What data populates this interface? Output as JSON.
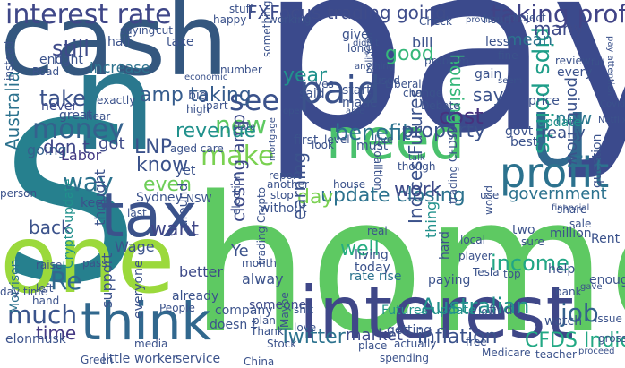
{
  "words": [
    {
      "text": "pay",
      "color": "#3b4a8c"
    },
    {
      "text": "home",
      "color": "#5ec962"
    },
    {
      "text": "cash",
      "color": "#34577f"
    },
    {
      "text": "n",
      "color": "#2a788e"
    },
    {
      "text": "S",
      "color": "#26808e"
    },
    {
      "text": "one",
      "color": "#9bd93c"
    },
    {
      "text": "interest",
      "color": "#3f4788"
    },
    {
      "text": "think",
      "color": "#31688e"
    },
    {
      "text": "tax",
      "color": "#3b528b"
    },
    {
      "text": "need",
      "color": "#4ac16d"
    },
    {
      "text": "u",
      "color": "#31688e"
    },
    {
      "text": "profit",
      "color": "#2c728e"
    },
    {
      "text": "paid",
      "color": "#3b528b"
    },
    {
      "text": "interest rate",
      "color": "#3f4788"
    },
    {
      "text": "taking profit",
      "color": "#414487"
    },
    {
      "text": "FXFocus trading going",
      "color": "#3e4c8a"
    },
    {
      "text": "money",
      "color": "#34618d"
    },
    {
      "text": "make",
      "color": "#7ad151"
    },
    {
      "text": "see",
      "color": "#3b528b"
    },
    {
      "text": "new",
      "color": "#5ec962"
    },
    {
      "text": "much",
      "color": "#3a548c"
    },
    {
      "text": "income",
      "color": "#21a685"
    },
    {
      "text": "Indices Futures",
      "color": "#3b528b"
    },
    {
      "text": "Australian",
      "color": "#21918c"
    },
    {
      "text": "update closing",
      "color": "#2c728e"
    },
    {
      "text": "closing amp",
      "color": "#3e4a89"
    },
    {
      "text": "year",
      "color": "#21918c"
    },
    {
      "text": "amp taking",
      "color": "#365c8d"
    },
    {
      "text": "good",
      "color": "#35b779"
    },
    {
      "text": "take",
      "color": "#3b528b"
    },
    {
      "text": "know",
      "color": "#3b528b"
    },
    {
      "text": "way",
      "color": "#2c728e"
    },
    {
      "text": "revenue",
      "color": "#21918c"
    },
    {
      "text": "benefit",
      "color": "#2c728e"
    },
    {
      "text": "property",
      "color": "#3b528b"
    },
    {
      "text": "cost",
      "color": "#46327e"
    },
    {
      "text": "pips points",
      "color": "#1f9e89"
    },
    {
      "text": "Twitter",
      "color": "#2c728e"
    },
    {
      "text": "inflation",
      "color": "#3b528b"
    },
    {
      "text": "job",
      "color": "#34618d"
    },
    {
      "text": "well",
      "color": "#26ad81"
    },
    {
      "text": "CFDS Indices",
      "color": "#22a884"
    },
    {
      "text": "government",
      "color": "#2c728e"
    },
    {
      "text": "back",
      "color": "#3b528b"
    },
    {
      "text": "still",
      "color": "#3e4a89"
    },
    {
      "text": "time",
      "color": "#443983"
    },
    {
      "text": "Australia",
      "color": "#2c728e"
    },
    {
      "text": "day",
      "color": "#7ad151"
    },
    {
      "text": "even",
      "color": "#6ece58"
    },
    {
      "text": "LNP",
      "color": "#3b528b"
    },
    {
      "text": "housing",
      "color": "#35b779"
    },
    {
      "text": "mean",
      "color": "#2c728e"
    },
    {
      "text": "many",
      "color": "#3e4a89"
    },
    {
      "text": "now",
      "color": "#2a788e"
    },
    {
      "text": "points now",
      "color": "#3b528b"
    },
    {
      "text": "going",
      "color": "#34618d"
    },
    {
      "text": "don t",
      "color": "#3f4788"
    },
    {
      "text": "got",
      "color": "#3e4a89"
    },
    {
      "text": "Re",
      "color": "#31688e"
    },
    {
      "text": "want",
      "color": "#3f4788"
    },
    {
      "text": "earning",
      "color": "#3b528b"
    },
    {
      "text": "say",
      "color": "#3b528b"
    },
    {
      "text": "work",
      "color": "#3e4a89"
    },
    {
      "text": "really",
      "color": "#3b528b"
    },
    {
      "text": "rate rise",
      "color": "#2c728e"
    },
    {
      "text": "update",
      "color": "#21918c"
    },
    {
      "text": "market",
      "color": "#3e4a89"
    },
    {
      "text": "Labor",
      "color": "#443983"
    },
    {
      "text": "never",
      "color": "#3e4a89"
    },
    {
      "text": "increase",
      "color": "#2c728e"
    },
    {
      "text": "Morrison",
      "color": "#2c728e"
    },
    {
      "text": "thing",
      "color": "#21918c"
    },
    {
      "text": "hard",
      "color": "#3b528b"
    },
    {
      "text": "alway",
      "color": "#3b528b"
    },
    {
      "text": "thought",
      "color": "#3b528b"
    },
    {
      "text": "Wage",
      "color": "#3b528b"
    },
    {
      "text": "support",
      "color": "#3b528b"
    },
    {
      "text": "everyone",
      "color": "#3b528b"
    },
    {
      "text": "elonmusk",
      "color": "#3b528b"
    },
    {
      "text": "better",
      "color": "#3e4a89"
    },
    {
      "text": "living",
      "color": "#3b528b"
    },
    {
      "text": "someone",
      "color": "#3e4a89"
    },
    {
      "text": "Futures update",
      "color": "#21918c"
    },
    {
      "text": "getting",
      "color": "#3b528b"
    },
    {
      "text": "find",
      "color": "#3b528b"
    },
    {
      "text": "enough",
      "color": "#3b528b"
    },
    {
      "text": "Rent",
      "color": "#3b528b"
    },
    {
      "text": "help",
      "color": "#3b528b"
    },
    {
      "text": "today",
      "color": "#3b528b"
    },
    {
      "text": "little",
      "color": "#3b528b"
    },
    {
      "text": "worker",
      "color": "#3b528b"
    },
    {
      "text": "service",
      "color": "#3b528b"
    },
    {
      "text": "Green",
      "color": "#3b528b"
    },
    {
      "text": "give",
      "color": "#3b528b"
    },
    {
      "text": "bill",
      "color": "#3b528b"
    },
    {
      "text": "first",
      "color": "#3b528b"
    },
    {
      "text": "yet",
      "color": "#3b528b"
    },
    {
      "text": "Sydney",
      "color": "#3b528b"
    },
    {
      "text": "keep",
      "color": "#3b528b"
    },
    {
      "text": "around",
      "color": "#3b528b"
    },
    {
      "text": "Crypto update",
      "color": "#21918c"
    },
    {
      "text": "made",
      "color": "#3b528b"
    },
    {
      "text": "without",
      "color": "#3b528b"
    },
    {
      "text": "already",
      "color": "#3b528b"
    },
    {
      "text": "company",
      "color": "#3b528b"
    },
    {
      "text": "must",
      "color": "#3b528b"
    },
    {
      "text": "end",
      "color": "#3b528b"
    },
    {
      "text": "right",
      "color": "#3b528b"
    },
    {
      "text": "half",
      "color": "#3b528b"
    },
    {
      "text": "taxe",
      "color": "#3b528b"
    },
    {
      "text": "cut",
      "color": "#3b528b"
    },
    {
      "text": "exactly",
      "color": "#3b528b"
    },
    {
      "text": "part",
      "color": "#3b528b"
    },
    {
      "text": "person",
      "color": "#3b528b"
    },
    {
      "text": "day time",
      "color": "#3b528b"
    },
    {
      "text": "actually",
      "color": "#3b528b"
    },
    {
      "text": "free",
      "color": "#3b528b"
    },
    {
      "text": "low",
      "color": "#3b528b"
    },
    {
      "text": "gain",
      "color": "#3b528b"
    },
    {
      "text": "every",
      "color": "#3b528b"
    },
    {
      "text": "million",
      "color": "#3b528b"
    },
    {
      "text": "question",
      "color": "#3b528b"
    },
    {
      "text": "best",
      "color": "#3b528b"
    },
    {
      "text": "price",
      "color": "#3b528b"
    },
    {
      "text": "watch",
      "color": "#3b528b"
    },
    {
      "text": "issue",
      "color": "#3b528b"
    },
    {
      "text": "top",
      "color": "#3b528b"
    },
    {
      "text": "level",
      "color": "#3b528b"
    },
    {
      "text": "look",
      "color": "#3b528b"
    },
    {
      "text": "live",
      "color": "#3b528b"
    },
    {
      "text": "doesn t",
      "color": "#3b528b"
    },
    {
      "text": "plan",
      "color": "#3b528b"
    },
    {
      "text": "shit",
      "color": "#3b528b"
    },
    {
      "text": "Maybe",
      "color": "#3b528b"
    },
    {
      "text": "love",
      "color": "#3b528b"
    },
    {
      "text": "Thank",
      "color": "#3b528b"
    },
    {
      "text": "place",
      "color": "#3b528b"
    },
    {
      "text": "media",
      "color": "#3b528b"
    },
    {
      "text": "hour",
      "color": "#3b528b"
    },
    {
      "text": "bank",
      "color": "#3b528b"
    },
    {
      "text": "govt",
      "color": "#3b528b"
    },
    {
      "text": "saying",
      "color": "#3b528b"
    },
    {
      "text": "start",
      "color": "#3b528b"
    },
    {
      "text": "working",
      "color": "#3b528b"
    },
    {
      "text": "happy",
      "color": "#3b528b"
    },
    {
      "text": "stuff",
      "color": "#3b528b"
    },
    {
      "text": "two",
      "color": "#3b528b"
    },
    {
      "text": "less",
      "color": "#3b528b"
    },
    {
      "text": "fine",
      "color": "#3b528b"
    },
    {
      "text": "review",
      "color": "#3b528b"
    },
    {
      "text": "used",
      "color": "#3b528b"
    },
    {
      "text": "paying",
      "color": "#3b528b"
    },
    {
      "text": "use",
      "color": "#3b528b"
    },
    {
      "text": "real",
      "color": "#3b528b"
    },
    {
      "text": "election",
      "color": "#3b528b"
    },
    {
      "text": "big",
      "color": "#3b528b"
    },
    {
      "text": "high",
      "color": "#3b528b"
    },
    {
      "text": "aged care",
      "color": "#3b528b"
    },
    {
      "text": "report",
      "color": "#3b528b"
    },
    {
      "text": "another",
      "color": "#3b528b"
    },
    {
      "text": "stop",
      "color": "#3b528b"
    },
    {
      "text": "mortgage",
      "color": "#3b528b"
    },
    {
      "text": "said",
      "color": "#3b528b"
    },
    {
      "text": "yes",
      "color": "#3b528b"
    },
    {
      "text": "Check",
      "color": "#3b528b"
    },
    {
      "text": "provide",
      "color": "#3b528b"
    },
    {
      "text": "long",
      "color": "#3b528b"
    },
    {
      "text": "didn t",
      "color": "#3b528b"
    },
    {
      "text": "anything",
      "color": "#3b528b"
    },
    {
      "text": "politician",
      "color": "#3b528b"
    },
    {
      "text": "Liberal",
      "color": "#3b528b"
    },
    {
      "text": "Road",
      "color": "#3b528b"
    },
    {
      "text": "number",
      "color": "#3b528b"
    },
    {
      "text": "something",
      "color": "#3b528b"
    },
    {
      "text": "getting",
      "color": "#3b528b"
    },
    {
      "text": "Ye",
      "color": "#3b528b"
    },
    {
      "text": "month",
      "color": "#3b528b"
    },
    {
      "text": "sale",
      "color": "#3b528b"
    },
    {
      "text": "local",
      "color": "#3b528b"
    },
    {
      "text": "share",
      "color": "#3b528b"
    },
    {
      "text": "sure",
      "color": "#3b528b"
    },
    {
      "text": "raise",
      "color": "#3b528b"
    },
    {
      "text": "NSW",
      "color": "#3b528b"
    },
    {
      "text": "left",
      "color": "#3b528b"
    },
    {
      "text": "hear",
      "color": "#3b528b"
    },
    {
      "text": "great",
      "color": "#3b528b"
    },
    {
      "text": "pass",
      "color": "#3b528b"
    },
    {
      "text": "project",
      "color": "#3b528b"
    },
    {
      "text": "house",
      "color": "#3b528b"
    },
    {
      "text": "China",
      "color": "#3b528b"
    },
    {
      "text": "People",
      "color": "#3b528b"
    },
    {
      "text": "Medicare",
      "color": "#3b528b"
    },
    {
      "text": "teacher",
      "color": "#3b528b"
    },
    {
      "text": "spending",
      "color": "#3b528b"
    },
    {
      "text": "Stock",
      "color": "#3b528b"
    },
    {
      "text": "trading Crypto",
      "color": "#3b528b"
    },
    {
      "text": "player",
      "color": "#3b528b"
    },
    {
      "text": "last",
      "color": "#3b528b"
    },
    {
      "text": "gross",
      "color": "#3b528b"
    },
    {
      "text": "instead",
      "color": "#3b528b"
    },
    {
      "text": "Tesla",
      "color": "#3b528b"
    },
    {
      "text": "financial",
      "color": "#3b528b"
    },
    {
      "text": "proceed",
      "color": "#3b528b"
    },
    {
      "text": "open",
      "color": "#3b528b"
    },
    {
      "text": "Netflix",
      "color": "#3b528b"
    },
    {
      "text": "pay attention",
      "color": "#3b528b"
    },
    {
      "text": "Debate",
      "color": "#3b528b"
    },
    {
      "text": "Covid",
      "color": "#3b528b"
    },
    {
      "text": "seem",
      "color": "#3b528b"
    },
    {
      "text": "full",
      "color": "#3b528b"
    },
    {
      "text": "problem",
      "color": "#3b528b"
    },
    {
      "text": "economic",
      "color": "#3b528b"
    },
    {
      "text": "state",
      "color": "#3b528b"
    },
    {
      "text": "Coalition",
      "color": "#3b528b"
    },
    {
      "text": "world",
      "color": "#3b528b"
    },
    {
      "text": "gave",
      "color": "#3b528b"
    },
    {
      "text": "though",
      "color": "#3b528b"
    },
    {
      "text": "talk",
      "color": "#3b528b"
    },
    {
      "text": "trading CFDS",
      "color": "#3b528b"
    },
    {
      "text": "able",
      "color": "#3b528b"
    },
    {
      "text": "change",
      "color": "#3b528b"
    },
    {
      "text": "hand",
      "color": "#3b528b"
    }
  ]
}
